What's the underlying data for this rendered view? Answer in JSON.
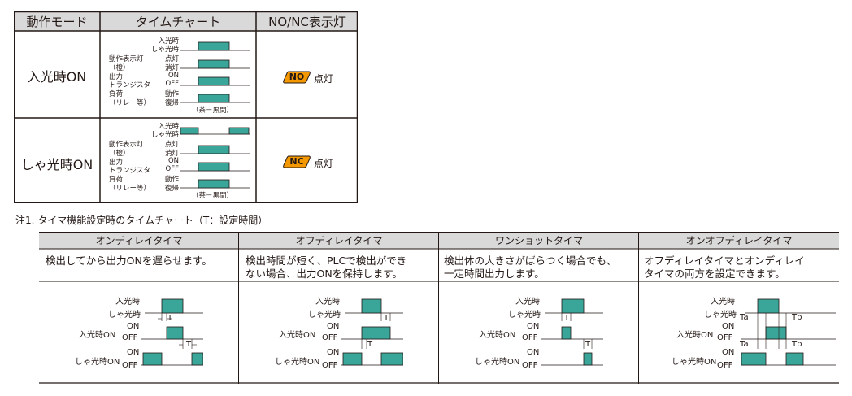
{
  "colors": {
    "teal": "#3aa69a",
    "header_gray": "#d9d9d9",
    "badge_orange": "#f39800",
    "ink": "#231815"
  },
  "mode_table": {
    "headers": [
      "動作モード",
      "タイムチャート",
      "NO/NC表示灯"
    ],
    "rows": [
      {
        "mode": "入光時ON",
        "badge": "NO",
        "lamp": "点灯",
        "chart": {
          "light_labels": [
            "入光時",
            "しゃ光時"
          ],
          "indicator_labels": [
            "動作表示灯",
            "（橙）"
          ],
          "indicator_states": [
            "点灯",
            "消灯"
          ],
          "transistor_labels": [
            "出力",
            "トランジスタ"
          ],
          "transistor_states": [
            "ON",
            "OFF"
          ],
          "load_labels": [
            "負荷",
            "（リレー等）"
          ],
          "load_states": [
            "動作",
            "復帰"
          ],
          "footnote": "（茶－黒間）"
        }
      },
      {
        "mode": "しゃ光時ON",
        "badge": "NC",
        "lamp": "点灯",
        "chart": {
          "light_labels": [
            "入光時",
            "しゃ光時"
          ],
          "indicator_labels": [
            "動作表示灯",
            "（橙）"
          ],
          "indicator_states": [
            "点灯",
            "消灯"
          ],
          "transistor_labels": [
            "出力",
            "トランジスタ"
          ],
          "transistor_states": [
            "ON",
            "OFF"
          ],
          "load_labels": [
            "負荷",
            "（リレー等）"
          ],
          "load_states": [
            "動作",
            "復帰"
          ],
          "footnote": "（茶－黒間）"
        }
      }
    ]
  },
  "timer_note": "注1. タイマ機能設定時のタイムチャート（T：設定時間）",
  "timer_table": {
    "columns": [
      {
        "title": "オンディレイタイマ",
        "desc_lines": [
          "検出してから出力ONを遅らせます。"
        ],
        "delay_label": "T"
      },
      {
        "title": "オフディレイタイマ",
        "desc_lines": [
          "検出時間が短く、PLCで検出ができ",
          "ない場合、出力ONを保持します。"
        ],
        "delay_label": "T"
      },
      {
        "title": "ワンショットタイマ",
        "desc_lines": [
          "検出体の大きさがばらつく場合でも、",
          "一定時間出力します。"
        ],
        "delay_label": "T"
      },
      {
        "title": "オンオフディレイタイマ",
        "desc_lines": [
          "オフディレイタイマとオンディレイ",
          "タイマの両方を設定できます。"
        ],
        "delay_labels": [
          "Ta",
          "Tb"
        ]
      }
    ],
    "chart_labels": {
      "light": [
        "入光時",
        "しゃ光時"
      ],
      "on_light": "入光時ON",
      "on_dark": "しゃ光時ON",
      "on": "ON",
      "off": "OFF"
    }
  }
}
